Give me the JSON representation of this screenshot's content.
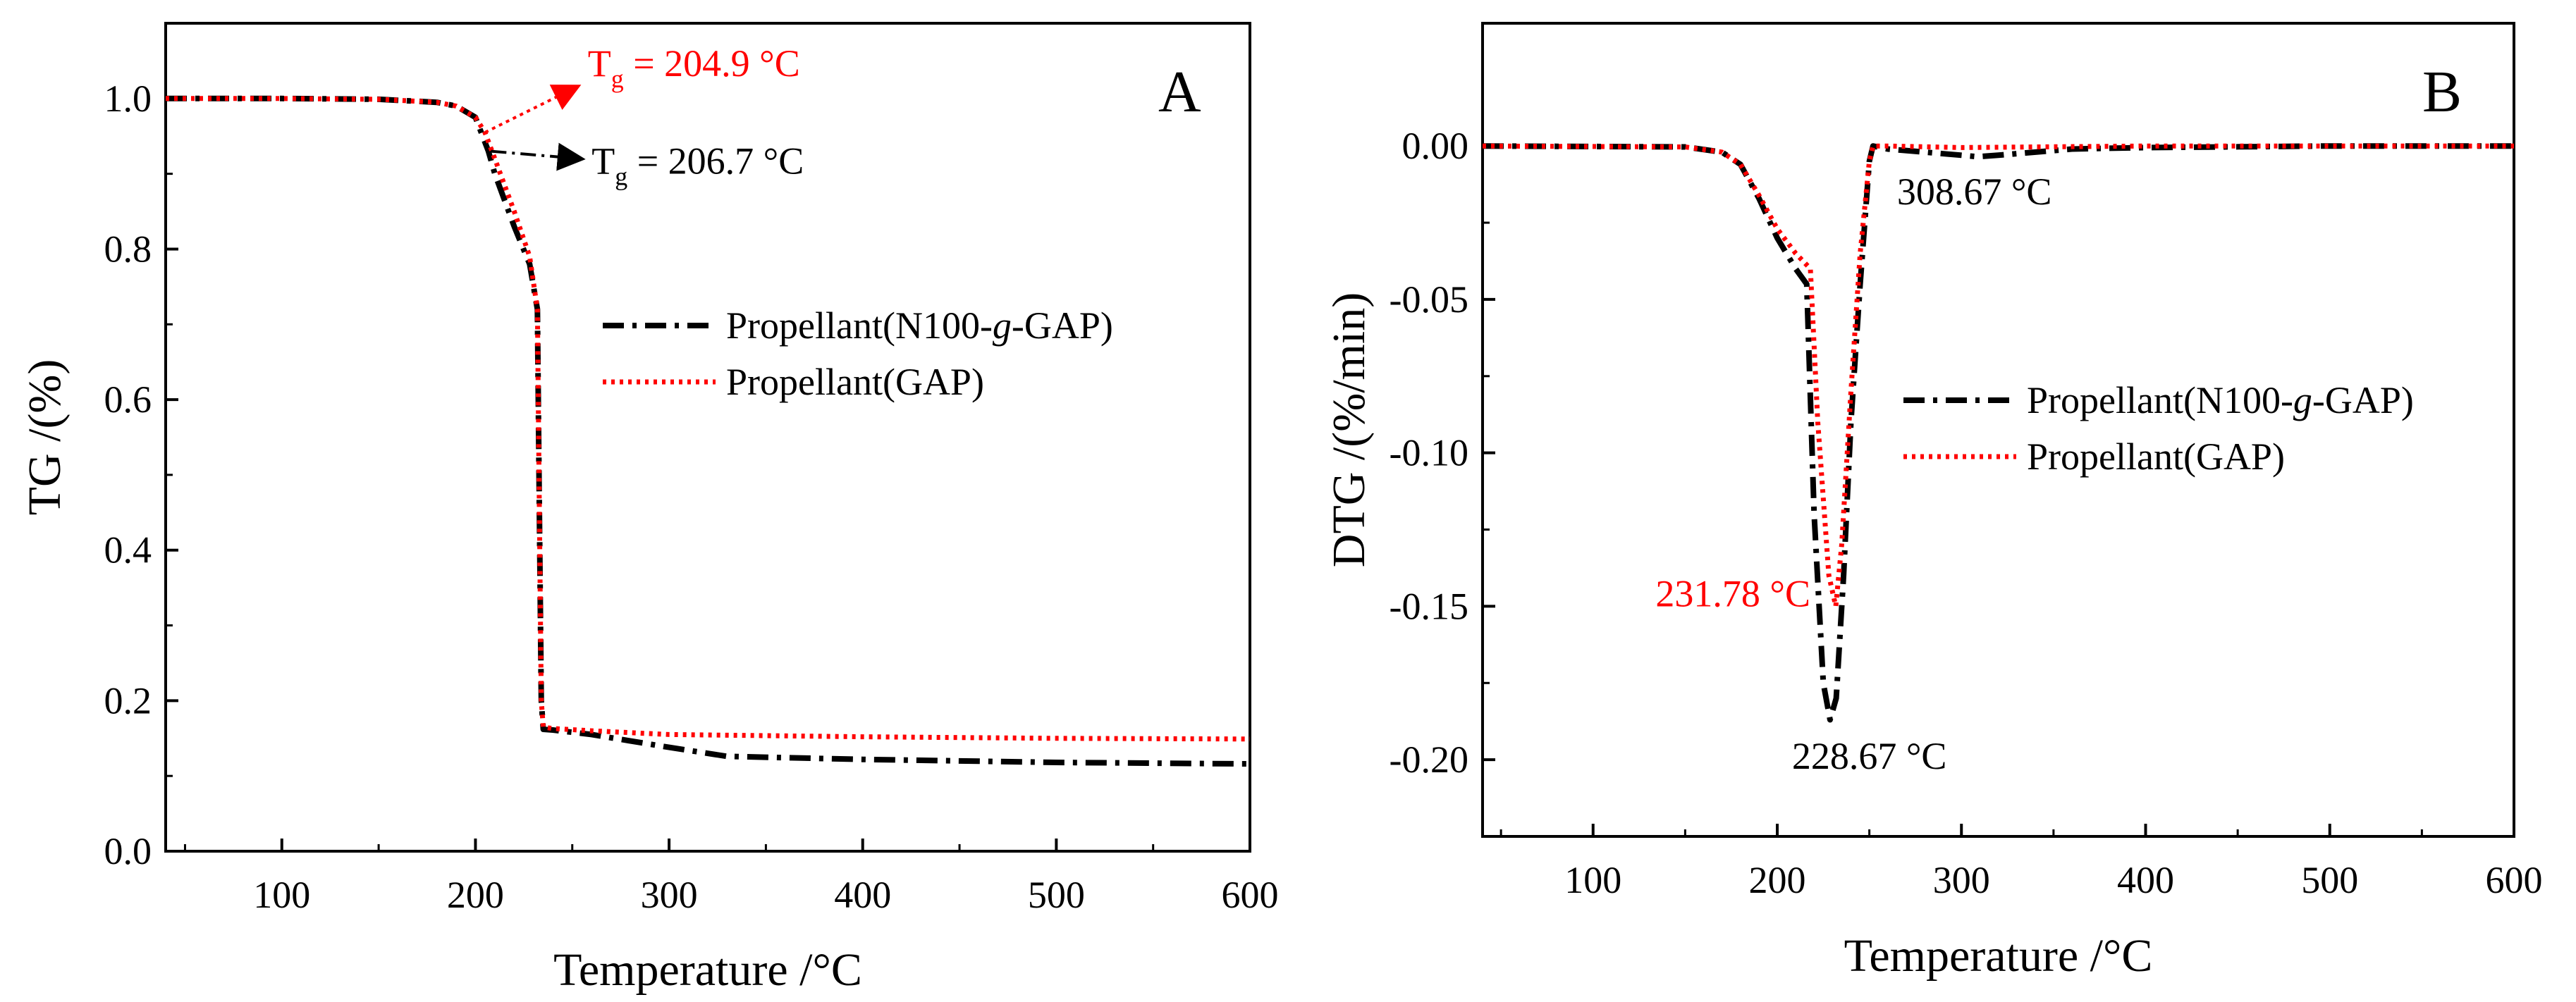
{
  "chart_data": [
    {
      "type": "line",
      "panel_label": "A",
      "title": "",
      "xlabel": "Temperature /°C",
      "ylabel": "TG /(%)",
      "xlim": [
        40,
        600
      ],
      "ylim": [
        0.0,
        1.1
      ],
      "xticks": [
        100,
        200,
        300,
        400,
        500,
        600
      ],
      "yticks": [
        0.0,
        0.2,
        0.4,
        0.6,
        0.8,
        1.0
      ],
      "ytick_labels": [
        "0.0",
        "0.2",
        "0.4",
        "0.6",
        "0.8",
        "1.0"
      ],
      "legend": [
        {
          "label_prefix": "Propellant(N100-",
          "label_italic": "g",
          "label_suffix": "-GAP)",
          "color": "#000000",
          "style": "dashdot"
        },
        {
          "label": "Propellant(GAP)",
          "color": "#ff0000",
          "style": "dotted"
        }
      ],
      "series": [
        {
          "name": "Propellant(N100-g-GAP)",
          "color": "#000000",
          "style": "dashdot",
          "x": [
            40,
            100,
            150,
            180,
            190,
            200,
            206.7,
            210,
            220,
            228,
            232,
            233,
            234,
            235,
            240,
            260,
            300,
            330,
            400,
            500,
            600
          ],
          "y": [
            1.0,
            1.0,
            0.999,
            0.995,
            0.99,
            0.975,
            0.93,
            0.9,
            0.83,
            0.78,
            0.72,
            0.45,
            0.2,
            0.162,
            0.161,
            0.155,
            0.138,
            0.126,
            0.122,
            0.118,
            0.116
          ]
        },
        {
          "name": "Propellant(GAP)",
          "color": "#ff0000",
          "style": "dotted",
          "x": [
            40,
            100,
            150,
            180,
            190,
            200,
            204.9,
            210,
            220,
            228,
            232,
            233,
            234,
            235,
            240,
            260,
            300,
            400,
            500,
            600
          ],
          "y": [
            1.0,
            1.0,
            0.999,
            0.995,
            0.99,
            0.975,
            0.955,
            0.92,
            0.85,
            0.79,
            0.72,
            0.45,
            0.2,
            0.165,
            0.163,
            0.16,
            0.155,
            0.152,
            0.15,
            0.149
          ]
        }
      ],
      "annotations": [
        {
          "base": "T",
          "sub": "g",
          "rest": " = 204.9 °C",
          "color": "#ff0000",
          "arrow_from": [
            205,
            0.955
          ],
          "arrow_to": [
            252,
            1.015
          ],
          "text_at": [
            258,
            1.03
          ]
        },
        {
          "base": "T",
          "sub": "g",
          "rest": " = 206.7 °C",
          "color": "#000000",
          "arrow_from": [
            208,
            0.93
          ],
          "arrow_to": [
            254,
            0.92
          ],
          "text_at": [
            260,
            0.9
          ]
        }
      ]
    },
    {
      "type": "line",
      "panel_label": "B",
      "title": "",
      "xlabel": "Temperature /°C",
      "ylabel": "DTG /(%/min)",
      "xlim": [
        40,
        600
      ],
      "ylim": [
        -0.225,
        0.04
      ],
      "xticks": [
        100,
        200,
        300,
        400,
        500,
        600
      ],
      "yticks": [
        0.0,
        -0.05,
        -0.1,
        -0.15,
        -0.2
      ],
      "ytick_labels": [
        "0.00",
        "-0.05",
        "-0.10",
        "-0.15",
        "-0.20"
      ],
      "legend": [
        {
          "label_prefix": "Propellant(N100-",
          "label_italic": "g",
          "label_suffix": "-GAP)",
          "color": "#000000",
          "style": "dashdot"
        },
        {
          "label": "Propellant(GAP)",
          "color": "#ff0000",
          "style": "dotted"
        }
      ],
      "series": [
        {
          "name": "Propellant(N100-g-GAP)",
          "color": "#000000",
          "style": "dashdot",
          "x": [
            40,
            150,
            170,
            180,
            190,
            200,
            210,
            216,
            220,
            225,
            228.67,
            232,
            236,
            240,
            245,
            250,
            252,
            260,
            280,
            300,
            308.67,
            320,
            360,
            400,
            500,
            600
          ],
          "y": [
            0.0,
            -0.0003,
            -0.002,
            -0.006,
            -0.017,
            -0.03,
            -0.04,
            -0.045,
            -0.12,
            -0.175,
            -0.187,
            -0.18,
            -0.14,
            -0.09,
            -0.045,
            -0.005,
            0.0,
            -0.001,
            -0.002,
            -0.003,
            -0.0035,
            -0.003,
            -0.001,
            -0.0005,
            0.0,
            0.0
          ]
        },
        {
          "name": "Propellant(GAP)",
          "color": "#ff0000",
          "style": "dotted",
          "x": [
            40,
            150,
            170,
            180,
            190,
            200,
            210,
            218,
            222,
            228,
            231.78,
            235,
            240,
            245,
            250,
            252,
            260,
            300,
            400,
            500,
            600
          ],
          "y": [
            0.0,
            -0.0003,
            -0.002,
            -0.006,
            -0.016,
            -0.027,
            -0.035,
            -0.04,
            -0.09,
            -0.14,
            -0.15,
            -0.13,
            -0.08,
            -0.035,
            -0.005,
            0.0,
            0.0,
            -0.0005,
            0.0,
            0.0,
            0.0
          ]
        }
      ],
      "annotations": [
        {
          "text": "231.78 °C",
          "color": "#ff0000",
          "text_at": [
            218,
            -0.15
          ],
          "anchor": "end"
        },
        {
          "text": "228.67 °C",
          "color": "#000000",
          "text_at": [
            250,
            -0.203
          ],
          "anchor": "middle"
        },
        {
          "text": "308.67 °C",
          "color": "#000000",
          "text_at": [
            265,
            -0.019
          ],
          "anchor": "start"
        }
      ]
    }
  ]
}
